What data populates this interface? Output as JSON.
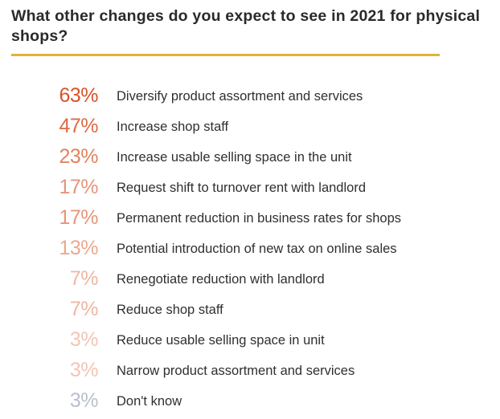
{
  "title": "What other changes do you expect to see in 2021 for physical shops?",
  "accent_rule_color": "#e0b436",
  "chart_data": {
    "type": "table",
    "title": "What other changes do you expect to see in 2021 for physical shops?",
    "value_unit": "%",
    "rows": [
      {
        "value": 63,
        "label": "63%",
        "text": "Diversify product assortment and services",
        "color": "#d9522a"
      },
      {
        "value": 47,
        "label": "47%",
        "text": "Increase shop staff",
        "color": "#dd6a44"
      },
      {
        "value": 23,
        "label": "23%",
        "text": "Increase usable selling space in the unit",
        "color": "#e2835f"
      },
      {
        "value": 17,
        "label": "17%",
        "text": "Request shift to turnover rent with landlord",
        "color": "#e6957a"
      },
      {
        "value": 17,
        "label": "17%",
        "text": "Permanent reduction in business rates for shops",
        "color": "#e6957a"
      },
      {
        "value": 13,
        "label": "13%",
        "text": "Potential introduction of new tax on online sales",
        "color": "#eba98f"
      },
      {
        "value": 7,
        "label": "7%",
        "text": "Renegotiate reduction with landlord",
        "color": "#eeb7a2"
      },
      {
        "value": 7,
        "label": "7%",
        "text": "Reduce shop staff",
        "color": "#eeb7a2"
      },
      {
        "value": 3,
        "label": "3%",
        "text": "Reduce usable selling space in unit",
        "color": "#f1c6b6"
      },
      {
        "value": 3,
        "label": "3%",
        "text": "Narrow product assortment and services",
        "color": "#f1c6b6"
      },
      {
        "value": 3,
        "label": "3%",
        "text": "Don't know",
        "color": "#b9bfcb"
      }
    ]
  }
}
